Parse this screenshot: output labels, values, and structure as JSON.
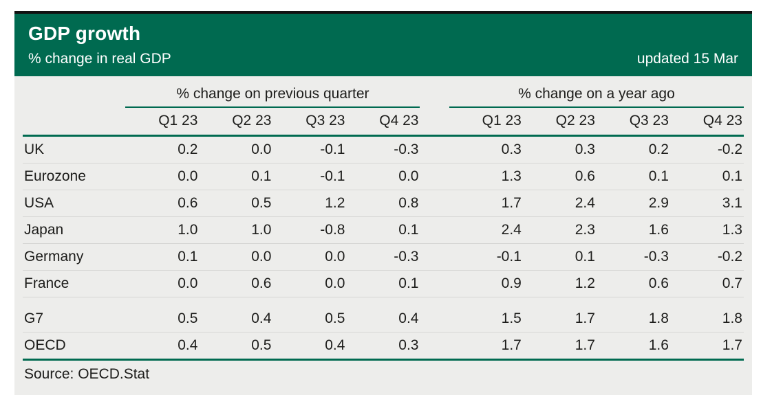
{
  "header": {
    "title": "GDP growth",
    "subtitle": "% change in real GDP",
    "updated": "updated 15 Mar"
  },
  "colors": {
    "banner_green": "#006a50",
    "rule_green": "#006a50",
    "top_bar_black": "#121212",
    "sheet_grey": "#ededeb",
    "text_dark": "#1d1d1b",
    "row_line_grey": "#d6d6d4"
  },
  "chart_data": {
    "type": "table",
    "title": "GDP growth",
    "subtitle": "% change in real GDP",
    "updated": "updated 15 Mar",
    "column_groups": [
      "% change on previous quarter",
      "% change on a year ago"
    ],
    "columns": [
      "Q1 23",
      "Q2 23",
      "Q3 23",
      "Q4 23"
    ],
    "rows": [
      {
        "label": "UK",
        "section": "country",
        "prev_quarter": [
          "0.2",
          "0.0",
          "-0.1",
          "-0.3"
        ],
        "year_ago": [
          "0.3",
          "0.3",
          "0.2",
          "-0.2"
        ]
      },
      {
        "label": "Eurozone",
        "section": "country",
        "prev_quarter": [
          "0.0",
          "0.1",
          "-0.1",
          "0.0"
        ],
        "year_ago": [
          "1.3",
          "0.6",
          "0.1",
          "0.1"
        ]
      },
      {
        "label": "USA",
        "section": "country",
        "prev_quarter": [
          "0.6",
          "0.5",
          "1.2",
          "0.8"
        ],
        "year_ago": [
          "1.7",
          "2.4",
          "2.9",
          "3.1"
        ]
      },
      {
        "label": "Japan",
        "section": "country",
        "prev_quarter": [
          "1.0",
          "1.0",
          "-0.8",
          "0.1"
        ],
        "year_ago": [
          "2.4",
          "2.3",
          "1.6",
          "1.3"
        ]
      },
      {
        "label": "Germany",
        "section": "country",
        "prev_quarter": [
          "0.1",
          "0.0",
          "0.0",
          "-0.3"
        ],
        "year_ago": [
          "-0.1",
          "0.1",
          "-0.3",
          "-0.2"
        ]
      },
      {
        "label": "France",
        "section": "country",
        "prev_quarter": [
          "0.0",
          "0.6",
          "0.0",
          "0.1"
        ],
        "year_ago": [
          "0.9",
          "1.2",
          "0.6",
          "0.7"
        ]
      },
      {
        "label": "G7",
        "section": "aggregate",
        "prev_quarter": [
          "0.5",
          "0.4",
          "0.5",
          "0.4"
        ],
        "year_ago": [
          "1.5",
          "1.7",
          "1.8",
          "1.8"
        ]
      },
      {
        "label": "OECD",
        "section": "aggregate",
        "prev_quarter": [
          "0.4",
          "0.5",
          "0.4",
          "0.3"
        ],
        "year_ago": [
          "1.7",
          "1.7",
          "1.6",
          "1.7"
        ]
      }
    ],
    "source": "Source: OECD.Stat"
  }
}
